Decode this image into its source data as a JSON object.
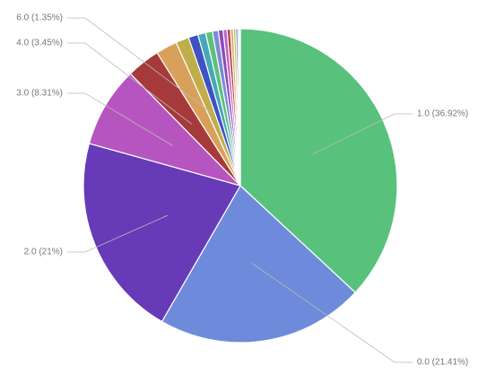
{
  "chart_data": {
    "type": "pie",
    "categories": [
      "1.0 (36.92%)",
      "0.0 (21.41%)",
      "2.0 (21%)",
      "3.0 (8.31%)",
      "4.0 (3.45%)",
      null,
      "6.0 (1.35%)",
      null,
      null,
      null,
      null,
      null,
      null,
      null,
      null,
      null,
      null,
      null,
      null
    ],
    "values": [
      36.92,
      21.41,
      21,
      8.31,
      3.45,
      2.2,
      1.35,
      1.0,
      0.8,
      0.7,
      0.6,
      0.5,
      0.4,
      0.35,
      0.3,
      0.25,
      0.2,
      0.15,
      0.11
    ],
    "colors": [
      "#58c27d",
      "#6e8bdb",
      "#673ab7",
      "#b655c0",
      "#a63a3a",
      "#d9a05b",
      "#bfae4a",
      "#3f51c4",
      "#45a9b8",
      "#5fc07a",
      "#7d8ad6",
      "#8b4cbc",
      "#c45cc4",
      "#b04545",
      "#d8a862",
      "#c8bc5a",
      "#5068c8",
      "#60b8c4",
      "#8ed09a"
    ]
  }
}
